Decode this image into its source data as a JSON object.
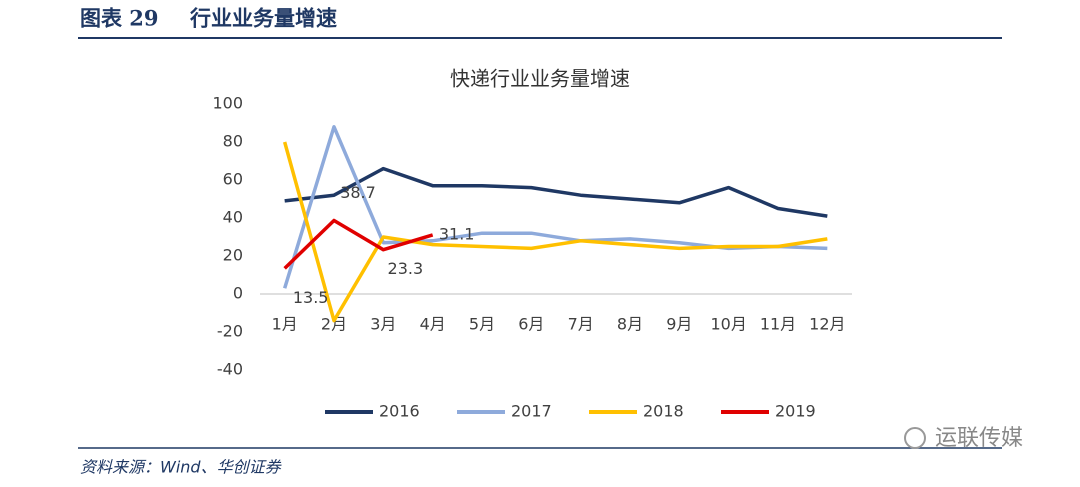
{
  "header": {
    "label": "图表 29",
    "title": "行业业务量增速"
  },
  "source": "资料来源：Wind、华创证券",
  "watermark": "运联传媒",
  "chart_data": {
    "type": "line",
    "title": "快递行业业务量增速",
    "categories": [
      "1月",
      "2月",
      "3月",
      "4月",
      "5月",
      "6月",
      "7月",
      "8月",
      "9月",
      "10月",
      "11月",
      "12月"
    ],
    "series": [
      {
        "name": "2016",
        "color": "#1f3864",
        "values": [
          49,
          52,
          66,
          57,
          57,
          56,
          52,
          50,
          48,
          56,
          45,
          41
        ]
      },
      {
        "name": "2017",
        "color": "#8eaadb",
        "values": [
          3,
          88,
          27,
          28,
          32,
          32,
          28,
          29,
          27,
          24,
          25,
          24
        ]
      },
      {
        "name": "2018",
        "color": "#ffc000",
        "values": [
          80,
          -14,
          30,
          26,
          25,
          24,
          28,
          26,
          24,
          25,
          25,
          29
        ]
      },
      {
        "name": "2019",
        "color": "#e00000",
        "values": [
          13.5,
          38.7,
          23.3,
          31.1,
          null,
          null,
          null,
          null,
          null,
          null,
          null,
          null
        ],
        "data_labels": true
      }
    ],
    "ylim": [
      -40,
      100
    ],
    "yticks": [
      -40,
      -20,
      0,
      20,
      40,
      60,
      80,
      100
    ],
    "grid": false,
    "legend": "bottom"
  }
}
